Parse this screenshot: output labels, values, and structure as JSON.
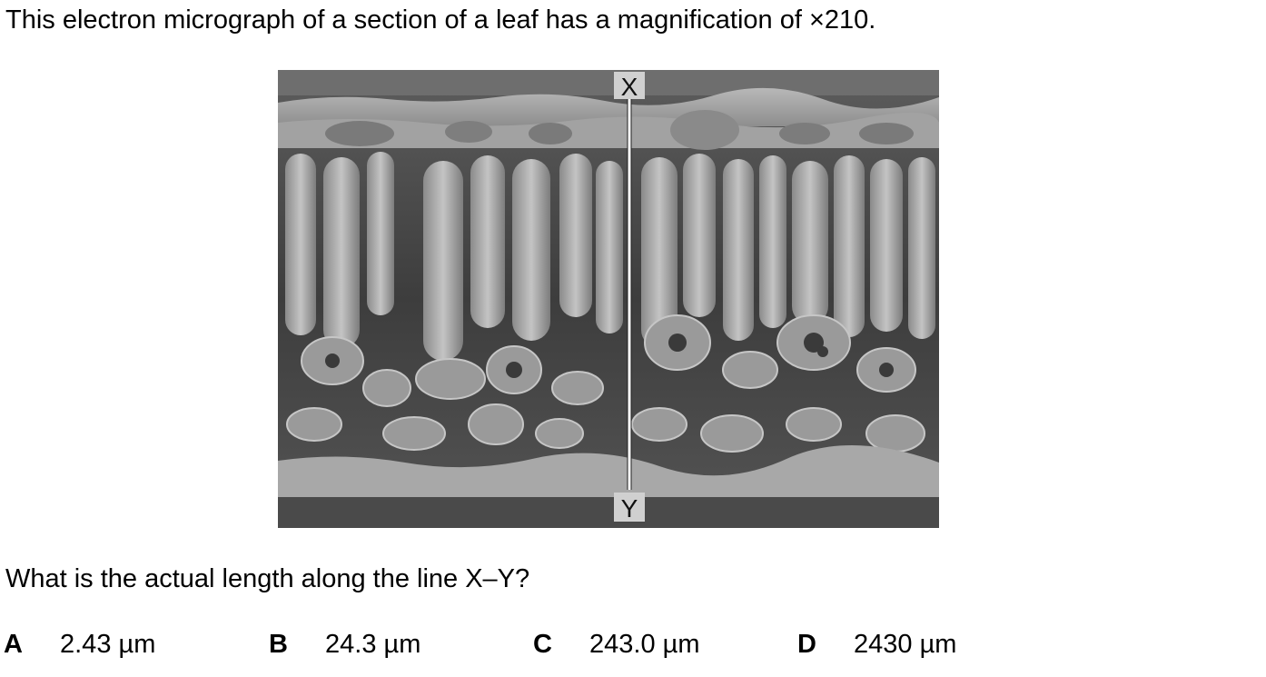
{
  "intro_text": "This electron micrograph of a section of a leaf has a magnification of ×210.",
  "figure": {
    "top_label": "X",
    "bottom_label": "Y"
  },
  "question_text": "What is the actual length along the line X–Y?",
  "options": [
    {
      "letter": "A",
      "value": "2.43 µm"
    },
    {
      "letter": "B",
      "value": "24.3 µm"
    },
    {
      "letter": "C",
      "value": "243.0 µm"
    },
    {
      "letter": "D",
      "value": "2430 µm"
    }
  ]
}
